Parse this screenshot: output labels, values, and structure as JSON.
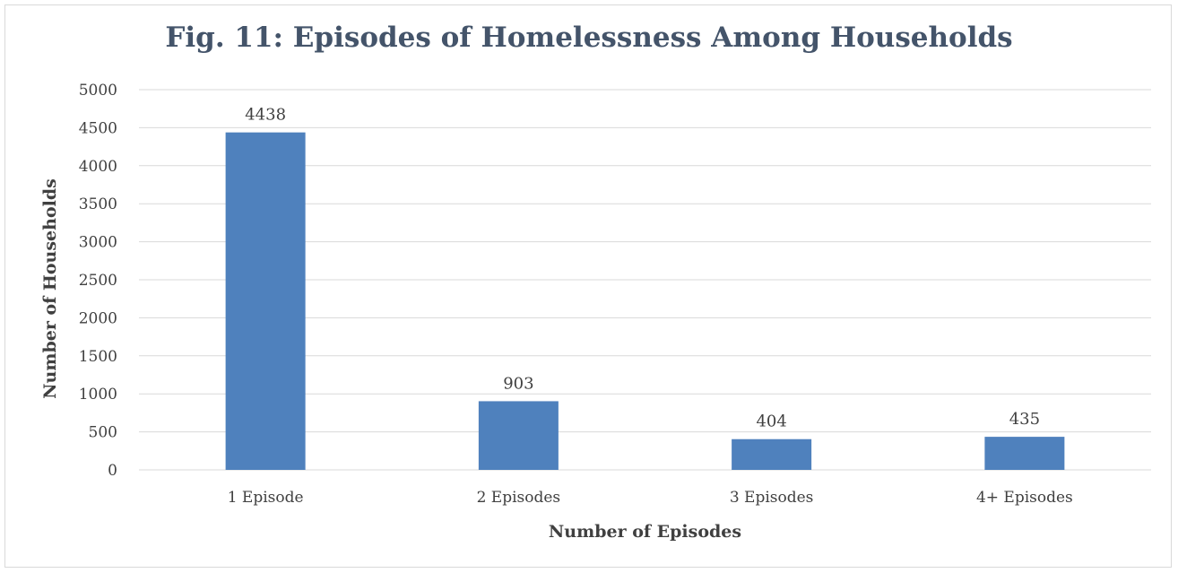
{
  "chart_data": {
    "type": "bar",
    "title": "Fig. 11: Episodes of Homelessness Among Households",
    "xlabel": "Number of Episodes",
    "ylabel": "Number of Households",
    "categories": [
      "1 Episode",
      "2 Episodes",
      "3 Episodes",
      "4+ Episodes"
    ],
    "values": [
      4438,
      903,
      404,
      435
    ],
    "data_labels": [
      "4438",
      "903",
      "404",
      "435"
    ],
    "ylim": [
      0,
      5000
    ],
    "yticks": [
      0,
      500,
      1000,
      1500,
      2000,
      2500,
      3000,
      3500,
      4000,
      4500,
      5000
    ],
    "grid": true,
    "legend": "none",
    "bar_color": "#4f81bd",
    "gridline_color": "#d9d9d9"
  }
}
